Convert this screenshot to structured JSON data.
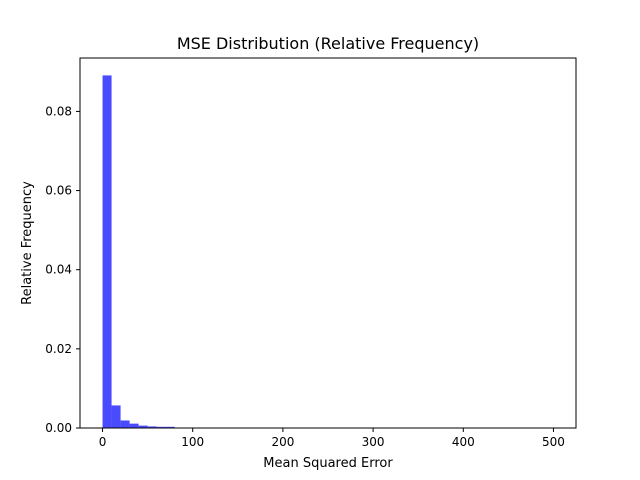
{
  "chart_data": {
    "type": "bar",
    "title": "MSE Distribution (Relative Frequency)",
    "xlabel": "Mean Squared Error",
    "ylabel": "Relative Frequency",
    "xlim": [
      -25,
      525
    ],
    "ylim": [
      0,
      0.0935
    ],
    "bar_color": "#4444ff",
    "xticks": [
      0,
      100,
      200,
      300,
      400,
      500
    ],
    "xtick_labels": [
      "0",
      "100",
      "200",
      "300",
      "400",
      "500"
    ],
    "yticks": [
      0,
      0.02,
      0.04,
      0.06,
      0.08
    ],
    "ytick_labels": [
      "0.00",
      "0.02",
      "0.04",
      "0.06",
      "0.08"
    ],
    "bin_width": 10,
    "bins": [
      {
        "x0": 0,
        "x1": 10,
        "value": 0.0891
      },
      {
        "x0": 10,
        "x1": 20,
        "value": 0.0057
      },
      {
        "x0": 20,
        "x1": 30,
        "value": 0.0019
      },
      {
        "x0": 30,
        "x1": 40,
        "value": 0.0011
      },
      {
        "x0": 40,
        "x1": 50,
        "value": 0.0006
      },
      {
        "x0": 50,
        "x1": 60,
        "value": 0.0004
      },
      {
        "x0": 60,
        "x1": 70,
        "value": 0.0003
      },
      {
        "x0": 70,
        "x1": 80,
        "value": 0.0003
      },
      {
        "x0": 80,
        "x1": 90,
        "value": 0.0001
      },
      {
        "x0": 90,
        "x1": 100,
        "value": 0.0001
      },
      {
        "x0": 100,
        "x1": 110,
        "value": 0.0001
      },
      {
        "x0": 110,
        "x1": 120,
        "value": 5e-05
      },
      {
        "x0": 120,
        "x1": 130,
        "value": 5e-05
      },
      {
        "x0": 130,
        "x1": 140,
        "value": 4e-05
      },
      {
        "x0": 140,
        "x1": 150,
        "value": 3e-05
      }
    ]
  }
}
